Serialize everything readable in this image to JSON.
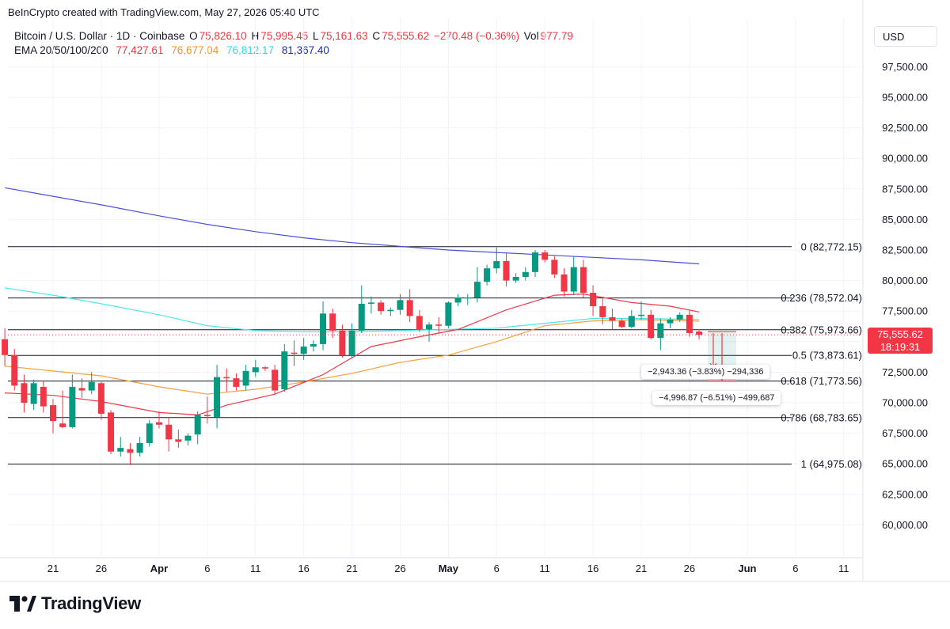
{
  "header": {
    "created_by": "BeInCrypto created with TradingView.com, May 27, 2026 05:40 UTC"
  },
  "legend": {
    "symbol": "Bitcoin / U.S. Dollar · 1D · Coinbase",
    "open_label": "O",
    "open": "75,826.10",
    "high_label": "H",
    "high": "75,995.45",
    "low_label": "L",
    "low": "75,161.63",
    "close_label": "C",
    "close": "75,555.62",
    "change": "−270.48 (−0.36%)",
    "vol_label": "Vol",
    "vol": "977.79",
    "ema_label": "EMA 20/50/100/200",
    "ema20": "77,427.61",
    "ema50": "76,677.04",
    "ema100": "76,812.17",
    "ema200": "81,367.40"
  },
  "currency_button": "USD",
  "price_tag": {
    "price": "75,555.62",
    "countdown": "18:19:31",
    "color": "#f23645"
  },
  "measure": {
    "short": "−2,943.36 (−3.83%) −294,336",
    "long": "−4,996.87 (−6.51%) −499,687"
  },
  "brand": {
    "name": "TradingView"
  },
  "colors": {
    "up": "#089981",
    "down": "#f23645",
    "ema20": "#f23645",
    "ema50": "#f7a13b",
    "ema100": "#4ee6ec",
    "ema200": "#4b4ed8",
    "fib": "#131722",
    "grid": "#f0f3fa"
  },
  "chart_data": {
    "type": "candlestick",
    "y_axis_ticks": [
      60000,
      62500,
      65000,
      67500,
      70000,
      72500,
      75000,
      77500,
      80000,
      82500,
      85000,
      87500,
      90000,
      92500,
      95000,
      97500
    ],
    "y_axis_labels": [
      "60,000.00",
      "62,500.00",
      "65,000.00",
      "67,500.00",
      "70,000.00",
      "72,500.00",
      "75,000.00",
      "77,500.00",
      "80,000.00",
      "82,500.00",
      "85,000.00",
      "87,500.00",
      "90,000.00",
      "92,500.00",
      "95,000.00",
      "97,500.00"
    ],
    "ylim": [
      57000,
      100500
    ],
    "x_axis_labels": [
      {
        "label": "21",
        "date": "2026-03-21"
      },
      {
        "label": "26",
        "date": "2026-03-26"
      },
      {
        "label": "Apr",
        "date": "2026-04-01"
      },
      {
        "label": "6",
        "date": "2026-04-06"
      },
      {
        "label": "11",
        "date": "2026-04-11"
      },
      {
        "label": "16",
        "date": "2026-04-16"
      },
      {
        "label": "21",
        "date": "2026-04-21"
      },
      {
        "label": "26",
        "date": "2026-04-26"
      },
      {
        "label": "May",
        "date": "2026-05-01"
      },
      {
        "label": "6",
        "date": "2026-05-06"
      },
      {
        "label": "11",
        "date": "2026-05-11"
      },
      {
        "label": "16",
        "date": "2026-05-16"
      },
      {
        "label": "21",
        "date": "2026-05-21"
      },
      {
        "label": "26",
        "date": "2026-05-26"
      },
      {
        "label": "Jun",
        "date": "2026-06-01"
      },
      {
        "label": "6",
        "date": "2026-06-06"
      },
      {
        "label": "11",
        "date": "2026-06-11"
      }
    ],
    "fib_levels": [
      {
        "label": "0 (82,772.15)",
        "value": 82772.15
      },
      {
        "label": "0.236 (78,572.04)",
        "value": 78572.04
      },
      {
        "label": "0.382 (75,973.66)",
        "value": 75973.66
      },
      {
        "label": "0.5 (73,873.61)",
        "value": 73873.61
      },
      {
        "label": "0.618 (71,773.56)",
        "value": 71773.56
      },
      {
        "label": "0.786 (68,783.65)",
        "value": 68783.65
      },
      {
        "label": "1 (64,975.08)",
        "value": 64975.08
      }
    ],
    "candles": [
      {
        "date": "2026-03-16",
        "o": 75200,
        "h": 76100,
        "l": 73000,
        "c": 73900
      },
      {
        "date": "2026-03-17",
        "o": 73900,
        "h": 74400,
        "l": 71000,
        "c": 71400
      },
      {
        "date": "2026-03-18",
        "o": 71600,
        "h": 72300,
        "l": 69200,
        "c": 70000
      },
      {
        "date": "2026-03-19",
        "o": 69900,
        "h": 71900,
        "l": 69400,
        "c": 71600
      },
      {
        "date": "2026-03-20",
        "o": 71300,
        "h": 71800,
        "l": 69200,
        "c": 69700
      },
      {
        "date": "2026-03-21",
        "o": 69800,
        "h": 70300,
        "l": 67500,
        "c": 68500
      },
      {
        "date": "2026-03-22",
        "o": 68300,
        "h": 71000,
        "l": 67900,
        "c": 68000
      },
      {
        "date": "2026-03-23",
        "o": 68000,
        "h": 72300,
        "l": 67900,
        "c": 71300
      },
      {
        "date": "2026-03-24",
        "o": 71200,
        "h": 72000,
        "l": 70400,
        "c": 71000
      },
      {
        "date": "2026-03-25",
        "o": 71000,
        "h": 72500,
        "l": 70700,
        "c": 71700
      },
      {
        "date": "2026-03-26",
        "o": 71600,
        "h": 71800,
        "l": 68600,
        "c": 69100
      },
      {
        "date": "2026-03-27",
        "o": 69200,
        "h": 69400,
        "l": 65800,
        "c": 66000
      },
      {
        "date": "2026-03-28",
        "o": 66000,
        "h": 67200,
        "l": 65600,
        "c": 66300
      },
      {
        "date": "2026-03-29",
        "o": 66200,
        "h": 66700,
        "l": 64900,
        "c": 65900
      },
      {
        "date": "2026-03-30",
        "o": 65900,
        "h": 67200,
        "l": 65600,
        "c": 66700
      },
      {
        "date": "2026-03-31",
        "o": 66700,
        "h": 68600,
        "l": 66400,
        "c": 68300
      },
      {
        "date": "2026-04-01",
        "o": 68400,
        "h": 69300,
        "l": 67900,
        "c": 68200
      },
      {
        "date": "2026-04-02",
        "o": 68200,
        "h": 68800,
        "l": 66000,
        "c": 67000
      },
      {
        "date": "2026-04-03",
        "o": 67000,
        "h": 67800,
        "l": 66300,
        "c": 66800
      },
      {
        "date": "2026-04-04",
        "o": 66900,
        "h": 67500,
        "l": 66500,
        "c": 67300
      },
      {
        "date": "2026-04-05",
        "o": 67400,
        "h": 69300,
        "l": 66600,
        "c": 69000
      },
      {
        "date": "2026-04-06",
        "o": 69000,
        "h": 70500,
        "l": 68300,
        "c": 68900
      },
      {
        "date": "2026-04-07",
        "o": 68800,
        "h": 73100,
        "l": 67900,
        "c": 72100
      },
      {
        "date": "2026-04-08",
        "o": 72100,
        "h": 72800,
        "l": 70900,
        "c": 72000
      },
      {
        "date": "2026-04-09",
        "o": 72000,
        "h": 72400,
        "l": 71000,
        "c": 71300
      },
      {
        "date": "2026-04-10",
        "o": 71400,
        "h": 73100,
        "l": 71000,
        "c": 72600
      },
      {
        "date": "2026-04-11",
        "o": 72500,
        "h": 73500,
        "l": 72100,
        "c": 72900
      },
      {
        "date": "2026-04-12",
        "o": 72900,
        "h": 73000,
        "l": 72600,
        "c": 72800
      },
      {
        "date": "2026-04-13",
        "o": 72700,
        "h": 73100,
        "l": 70700,
        "c": 71000
      },
      {
        "date": "2026-04-14",
        "o": 71100,
        "h": 74800,
        "l": 70900,
        "c": 74200
      },
      {
        "date": "2026-04-15",
        "o": 74100,
        "h": 75100,
        "l": 73000,
        "c": 74000
      },
      {
        "date": "2026-04-16",
        "o": 74000,
        "h": 75300,
        "l": 73500,
        "c": 74600
      },
      {
        "date": "2026-04-17",
        "o": 74600,
        "h": 75100,
        "l": 74200,
        "c": 74800
      },
      {
        "date": "2026-04-18",
        "o": 74800,
        "h": 78300,
        "l": 74300,
        "c": 77300
      },
      {
        "date": "2026-04-19",
        "o": 77300,
        "h": 77700,
        "l": 75300,
        "c": 75900
      },
      {
        "date": "2026-04-20",
        "o": 75900,
        "h": 76400,
        "l": 73700,
        "c": 73900
      },
      {
        "date": "2026-04-21",
        "o": 73900,
        "h": 76500,
        "l": 73700,
        "c": 75900
      },
      {
        "date": "2026-04-22",
        "o": 75900,
        "h": 79600,
        "l": 75700,
        "c": 78100
      },
      {
        "date": "2026-04-23",
        "o": 78100,
        "h": 78700,
        "l": 77300,
        "c": 78200
      },
      {
        "date": "2026-04-24",
        "o": 78200,
        "h": 78400,
        "l": 77200,
        "c": 77500
      },
      {
        "date": "2026-04-25",
        "o": 77500,
        "h": 77800,
        "l": 77100,
        "c": 77600
      },
      {
        "date": "2026-04-26",
        "o": 77600,
        "h": 78900,
        "l": 77200,
        "c": 78400
      },
      {
        "date": "2026-04-27",
        "o": 78400,
        "h": 79300,
        "l": 76600,
        "c": 77100
      },
      {
        "date": "2026-04-28",
        "o": 77100,
        "h": 77600,
        "l": 75800,
        "c": 76000
      },
      {
        "date": "2026-04-29",
        "o": 76000,
        "h": 76600,
        "l": 75000,
        "c": 76400
      },
      {
        "date": "2026-04-30",
        "o": 76400,
        "h": 77000,
        "l": 75700,
        "c": 76300
      },
      {
        "date": "2026-05-01",
        "o": 76300,
        "h": 78300,
        "l": 76100,
        "c": 78200
      },
      {
        "date": "2026-05-02",
        "o": 78200,
        "h": 78900,
        "l": 77900,
        "c": 78600
      },
      {
        "date": "2026-05-03",
        "o": 78600,
        "h": 78900,
        "l": 78000,
        "c": 78600
      },
      {
        "date": "2026-05-04",
        "o": 78600,
        "h": 81100,
        "l": 78200,
        "c": 79900
      },
      {
        "date": "2026-05-05",
        "o": 79900,
        "h": 81300,
        "l": 79600,
        "c": 81000
      },
      {
        "date": "2026-05-06",
        "o": 81000,
        "h": 82700,
        "l": 80600,
        "c": 81600
      },
      {
        "date": "2026-05-07",
        "o": 81600,
        "h": 82200,
        "l": 79500,
        "c": 80000
      },
      {
        "date": "2026-05-08",
        "o": 80000,
        "h": 80600,
        "l": 79800,
        "c": 80300
      },
      {
        "date": "2026-05-09",
        "o": 80300,
        "h": 81100,
        "l": 80000,
        "c": 80700
      },
      {
        "date": "2026-05-10",
        "o": 80700,
        "h": 82500,
        "l": 80300,
        "c": 82300
      },
      {
        "date": "2026-05-11",
        "o": 82300,
        "h": 82500,
        "l": 81500,
        "c": 81700
      },
      {
        "date": "2026-05-12",
        "o": 81700,
        "h": 82000,
        "l": 80200,
        "c": 80500
      },
      {
        "date": "2026-05-13",
        "o": 80500,
        "h": 81000,
        "l": 78700,
        "c": 79100
      },
      {
        "date": "2026-05-14",
        "o": 79100,
        "h": 82000,
        "l": 78800,
        "c": 81100
      },
      {
        "date": "2026-05-15",
        "o": 81100,
        "h": 81700,
        "l": 78600,
        "c": 79000
      },
      {
        "date": "2026-05-16",
        "o": 79000,
        "h": 79600,
        "l": 77100,
        "c": 77900
      },
      {
        "date": "2026-05-17",
        "o": 77900,
        "h": 78700,
        "l": 76400,
        "c": 77000
      },
      {
        "date": "2026-05-18",
        "o": 77000,
        "h": 77700,
        "l": 76000,
        "c": 76700
      },
      {
        "date": "2026-05-19",
        "o": 76700,
        "h": 76900,
        "l": 76100,
        "c": 76200
      },
      {
        "date": "2026-05-20",
        "o": 76200,
        "h": 77600,
        "l": 76100,
        "c": 77100
      },
      {
        "date": "2026-05-21",
        "o": 77100,
        "h": 78300,
        "l": 76800,
        "c": 77200
      },
      {
        "date": "2026-05-22",
        "o": 77200,
        "h": 77600,
        "l": 75200,
        "c": 75300
      },
      {
        "date": "2026-05-23",
        "o": 75300,
        "h": 76900,
        "l": 74300,
        "c": 76500
      },
      {
        "date": "2026-05-24",
        "o": 76500,
        "h": 77000,
        "l": 76100,
        "c": 76800
      },
      {
        "date": "2026-05-25",
        "o": 76800,
        "h": 77400,
        "l": 76600,
        "c": 77200
      },
      {
        "date": "2026-05-26",
        "o": 77200,
        "h": 77600,
        "l": 75400,
        "c": 75700
      },
      {
        "date": "2026-05-27",
        "o": 75826.1,
        "h": 75995.45,
        "l": 75161.63,
        "c": 75555.62
      }
    ],
    "ema20": [
      {
        "date": "2026-03-16",
        "v": 70800
      },
      {
        "date": "2026-03-21",
        "v": 70600
      },
      {
        "date": "2026-03-26",
        "v": 70100
      },
      {
        "date": "2026-04-01",
        "v": 69200
      },
      {
        "date": "2026-04-05",
        "v": 69000
      },
      {
        "date": "2026-04-08",
        "v": 69800
      },
      {
        "date": "2026-04-13",
        "v": 70700
      },
      {
        "date": "2026-04-18",
        "v": 72300
      },
      {
        "date": "2026-04-23",
        "v": 74600
      },
      {
        "date": "2026-04-28",
        "v": 75400
      },
      {
        "date": "2026-05-02",
        "v": 76000
      },
      {
        "date": "2026-05-07",
        "v": 77600
      },
      {
        "date": "2026-05-12",
        "v": 78800
      },
      {
        "date": "2026-05-15",
        "v": 78900
      },
      {
        "date": "2026-05-20",
        "v": 78200
      },
      {
        "date": "2026-05-24",
        "v": 77900
      },
      {
        "date": "2026-05-27",
        "v": 77427.61
      }
    ],
    "ema50": [
      {
        "date": "2026-03-16",
        "v": 73000
      },
      {
        "date": "2026-03-21",
        "v": 72600
      },
      {
        "date": "2026-03-26",
        "v": 72200
      },
      {
        "date": "2026-04-01",
        "v": 71300
      },
      {
        "date": "2026-04-06",
        "v": 70700
      },
      {
        "date": "2026-04-11",
        "v": 71100
      },
      {
        "date": "2026-04-16",
        "v": 71700
      },
      {
        "date": "2026-04-21",
        "v": 72400
      },
      {
        "date": "2026-04-26",
        "v": 73300
      },
      {
        "date": "2026-05-01",
        "v": 73900
      },
      {
        "date": "2026-05-06",
        "v": 75000
      },
      {
        "date": "2026-05-11",
        "v": 76300
      },
      {
        "date": "2026-05-16",
        "v": 76700
      },
      {
        "date": "2026-05-21",
        "v": 76800
      },
      {
        "date": "2026-05-27",
        "v": 76677.04
      }
    ],
    "ema100": [
      {
        "date": "2026-03-16",
        "v": 79400
      },
      {
        "date": "2026-03-21",
        "v": 78800
      },
      {
        "date": "2026-03-26",
        "v": 78100
      },
      {
        "date": "2026-04-01",
        "v": 77200
      },
      {
        "date": "2026-04-06",
        "v": 76300
      },
      {
        "date": "2026-04-11",
        "v": 75900
      },
      {
        "date": "2026-04-16",
        "v": 75800
      },
      {
        "date": "2026-04-21",
        "v": 75800
      },
      {
        "date": "2026-04-26",
        "v": 75900
      },
      {
        "date": "2026-05-01",
        "v": 76000
      },
      {
        "date": "2026-05-06",
        "v": 76100
      },
      {
        "date": "2026-05-11",
        "v": 76500
      },
      {
        "date": "2026-05-16",
        "v": 76900
      },
      {
        "date": "2026-05-21",
        "v": 76900
      },
      {
        "date": "2026-05-27",
        "v": 76812.17
      }
    ],
    "ema200": [
      {
        "date": "2026-03-16",
        "v": 87600
      },
      {
        "date": "2026-03-21",
        "v": 86900
      },
      {
        "date": "2026-03-26",
        "v": 86200
      },
      {
        "date": "2026-04-01",
        "v": 85300
      },
      {
        "date": "2026-04-06",
        "v": 84600
      },
      {
        "date": "2026-04-11",
        "v": 84000
      },
      {
        "date": "2026-04-16",
        "v": 83500
      },
      {
        "date": "2026-04-21",
        "v": 83100
      },
      {
        "date": "2026-04-26",
        "v": 82800
      },
      {
        "date": "2026-05-01",
        "v": 82500
      },
      {
        "date": "2026-05-06",
        "v": 82300
      },
      {
        "date": "2026-05-11",
        "v": 82100
      },
      {
        "date": "2026-05-16",
        "v": 81900
      },
      {
        "date": "2026-05-21",
        "v": 81700
      },
      {
        "date": "2026-05-27",
        "v": 81367.4
      }
    ]
  }
}
